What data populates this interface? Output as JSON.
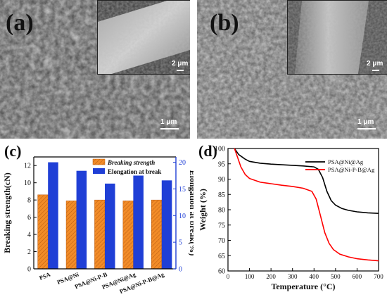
{
  "panel_a": {
    "label": "(a)",
    "inset_scale": "2 μm",
    "main_scale": "1 μm"
  },
  "panel_b": {
    "label": "(b)",
    "inset_scale": "2 μm",
    "main_scale": "1 μm"
  },
  "chart_data": [
    {
      "panel_label": "(c)",
      "type": "bar",
      "categories": [
        "PSA",
        "PSA@Ni",
        "PSA@Ni-P-B",
        "PSA@Ni@Ag",
        "PSA@Ni-P-B@Ag"
      ],
      "series": [
        {
          "name": "Breaking strength",
          "axis": "left",
          "color": "#f28c28",
          "hatch": true,
          "values": [
            8.6,
            7.9,
            8.0,
            7.9,
            8.0
          ]
        },
        {
          "name": "Elongation at break",
          "axis": "right",
          "color": "#1f3fd6",
          "hatch": false,
          "values": [
            20.0,
            18.4,
            16.0,
            17.5,
            16.6
          ]
        }
      ],
      "ylabel_left": "Breaking strength(cN)",
      "ylabel_right": "Elongation at break(%)",
      "ylim_left": [
        0,
        13
      ],
      "ylim_right": [
        0,
        21
      ],
      "yticks_left": [
        0,
        2,
        4,
        6,
        8,
        10,
        12
      ],
      "yticks_right": [
        0,
        5,
        10,
        15,
        20
      ],
      "legend": "top-right",
      "grid": false
    },
    {
      "panel_label": "(d)",
      "type": "line",
      "xlabel": "Temperature (°C)",
      "ylabel": "Weight (%)",
      "xlim": [
        0,
        700
      ],
      "ylim": [
        60,
        100
      ],
      "xticks": [
        0,
        100,
        200,
        300,
        400,
        500,
        600,
        700
      ],
      "yticks": [
        60,
        65,
        70,
        75,
        80,
        85,
        90,
        95,
        100
      ],
      "legend": "top-right",
      "grid": false,
      "series": [
        {
          "name": "PSA@Ni@Ag",
          "color": "#000000",
          "x": [
            30,
            50,
            80,
            100,
            150,
            200,
            250,
            300,
            350,
            400,
            420,
            440,
            460,
            480,
            500,
            530,
            560,
            600,
            650,
            700
          ],
          "y": [
            100,
            98,
            96.5,
            95.8,
            95.2,
            94.9,
            94.7,
            94.5,
            94.3,
            94.0,
            93.2,
            90.5,
            86.0,
            83.0,
            81.5,
            80.4,
            79.8,
            79.3,
            79.0,
            78.8
          ]
        },
        {
          "name": "PSA@Ni-P-B@Ag",
          "color": "#ff0000",
          "x": [
            30,
            45,
            60,
            80,
            100,
            130,
            150,
            200,
            250,
            300,
            350,
            390,
            410,
            430,
            450,
            470,
            490,
            520,
            560,
            600,
            650,
            700
          ],
          "y": [
            100,
            97,
            94,
            91.5,
            90.2,
            89.5,
            89.0,
            88.5,
            88.0,
            87.6,
            87.0,
            86.0,
            83.5,
            78.0,
            72.5,
            69.0,
            67.0,
            65.5,
            64.6,
            64.0,
            63.6,
            63.3
          ]
        }
      ]
    }
  ]
}
